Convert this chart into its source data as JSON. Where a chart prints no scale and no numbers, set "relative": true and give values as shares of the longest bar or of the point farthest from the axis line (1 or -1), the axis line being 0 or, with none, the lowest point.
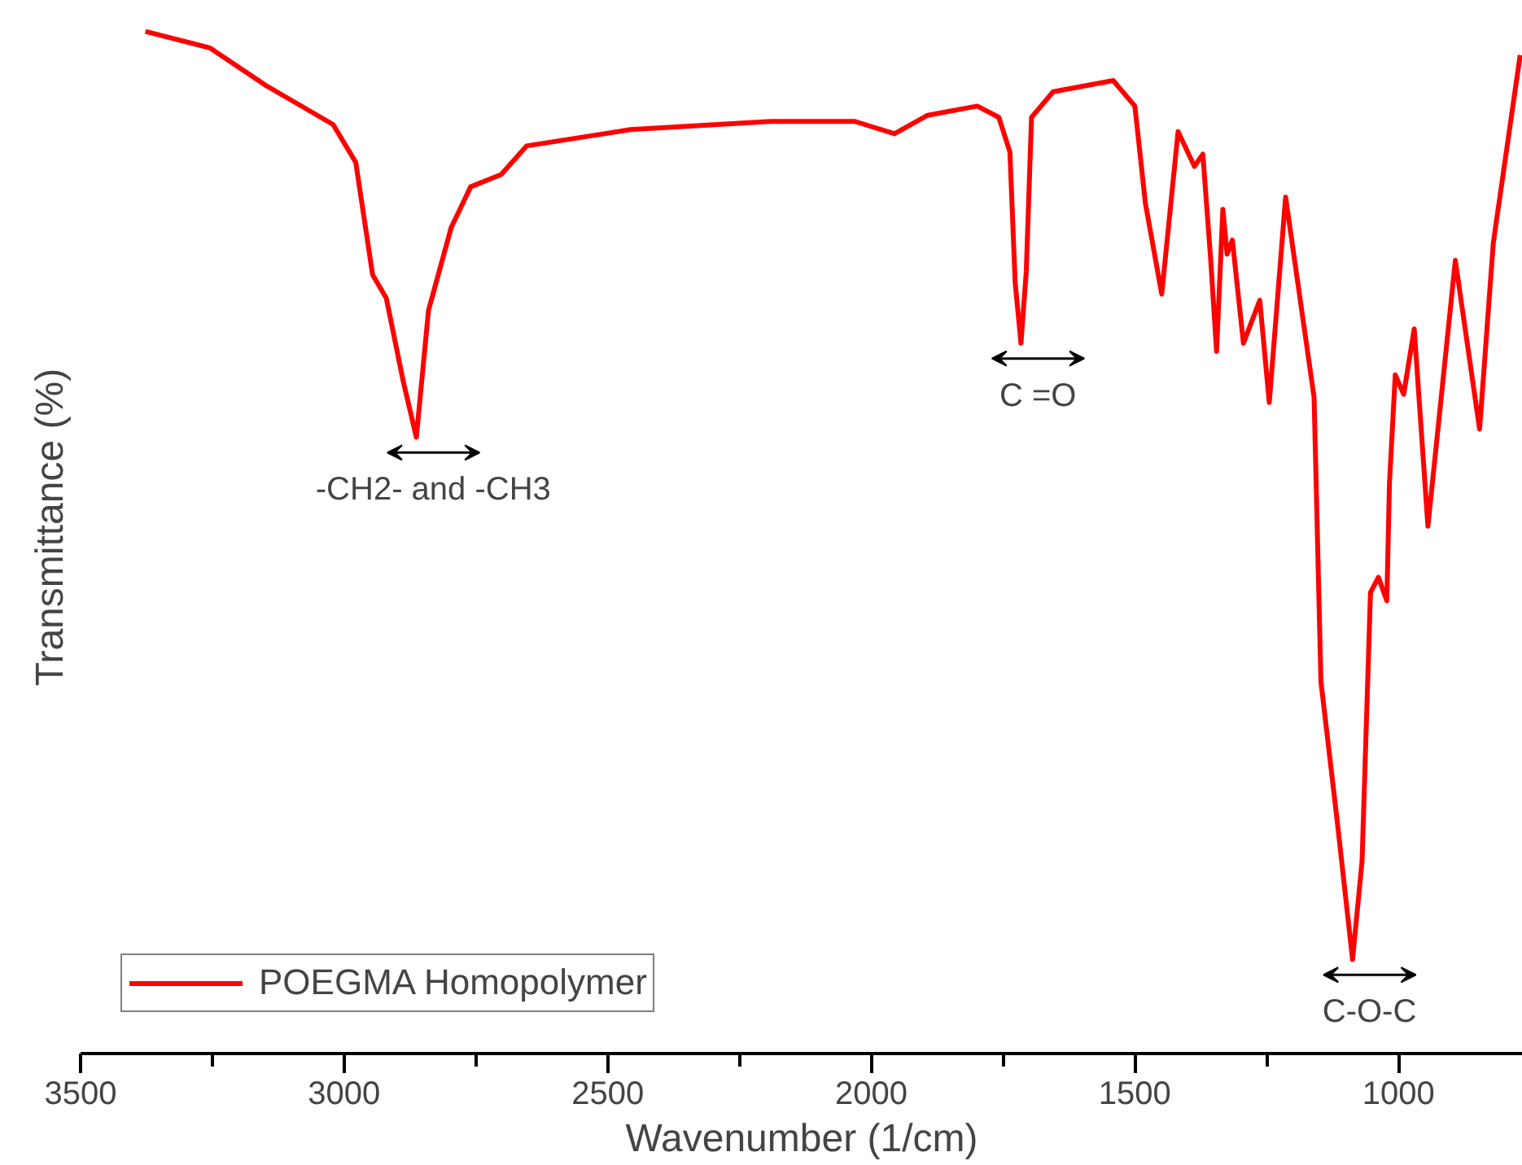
{
  "chart_data": {
    "type": "line",
    "relative": true,
    "xlabel": "Wavenumber (1/cm)",
    "ylabel": "Transmittance (%)",
    "xlim": [
      3500,
      764
    ],
    "xticks": [
      3500,
      {
        "value": 3250,
        "label": null
      },
      3000,
      {
        "value": 2750,
        "label": null
      },
      2500,
      {
        "value": 2250,
        "label": null
      },
      2000,
      {
        "value": 1750,
        "label": null
      },
      1500,
      {
        "value": 1250,
        "label": null
      },
      1000
    ],
    "x": [
      3377,
      3255,
      3148,
      3021,
      2978,
      2946,
      2920,
      2888,
      2863,
      2840,
      2797,
      2760,
      2702,
      2654,
      2457,
      2191,
      2031,
      1956,
      1893,
      1799,
      1758,
      1737,
      1727,
      1716,
      1706,
      1696,
      1655,
      1541,
      1500,
      1480,
      1449,
      1418,
      1387,
      1371,
      1356,
      1345,
      1333,
      1325,
      1315,
      1294,
      1263,
      1245,
      1214,
      1160,
      1147,
      1116,
      1087,
      1069,
      1053,
      1038,
      1022,
      1017,
      1006,
      990,
      970,
      944,
      892,
      846,
      820,
      769
    ],
    "series": [
      {
        "name": "POEGMA Homopolymer",
        "color": "#ff0000",
        "values": [
          1.0,
          0.984,
          0.947,
          0.909,
          0.872,
          0.762,
          0.739,
          0.658,
          0.603,
          0.727,
          0.808,
          0.848,
          0.86,
          0.888,
          0.904,
          0.912,
          0.912,
          0.9,
          0.918,
          0.927,
          0.916,
          0.882,
          0.754,
          0.695,
          0.765,
          0.916,
          0.941,
          0.952,
          0.927,
          0.832,
          0.743,
          0.902,
          0.868,
          0.88,
          0.776,
          0.687,
          0.826,
          0.782,
          0.796,
          0.695,
          0.737,
          0.637,
          0.838,
          0.642,
          0.364,
          0.227,
          0.092,
          0.188,
          0.451,
          0.466,
          0.443,
          0.558,
          0.664,
          0.645,
          0.709,
          0.516,
          0.776,
          0.611,
          0.793,
          0.977
        ]
      }
    ],
    "annotations": [
      {
        "text": "-CH2- and -CH3",
        "x": 2863,
        "y": 0.603
      },
      {
        "text": "C =O",
        "x": 1716,
        "y": 0.695
      },
      {
        "text": "C-O-C",
        "x": 1087,
        "y": 0.092
      }
    ],
    "legend": "bottom left",
    "grid": false,
    "marker": "none",
    "line_style": "solid"
  }
}
